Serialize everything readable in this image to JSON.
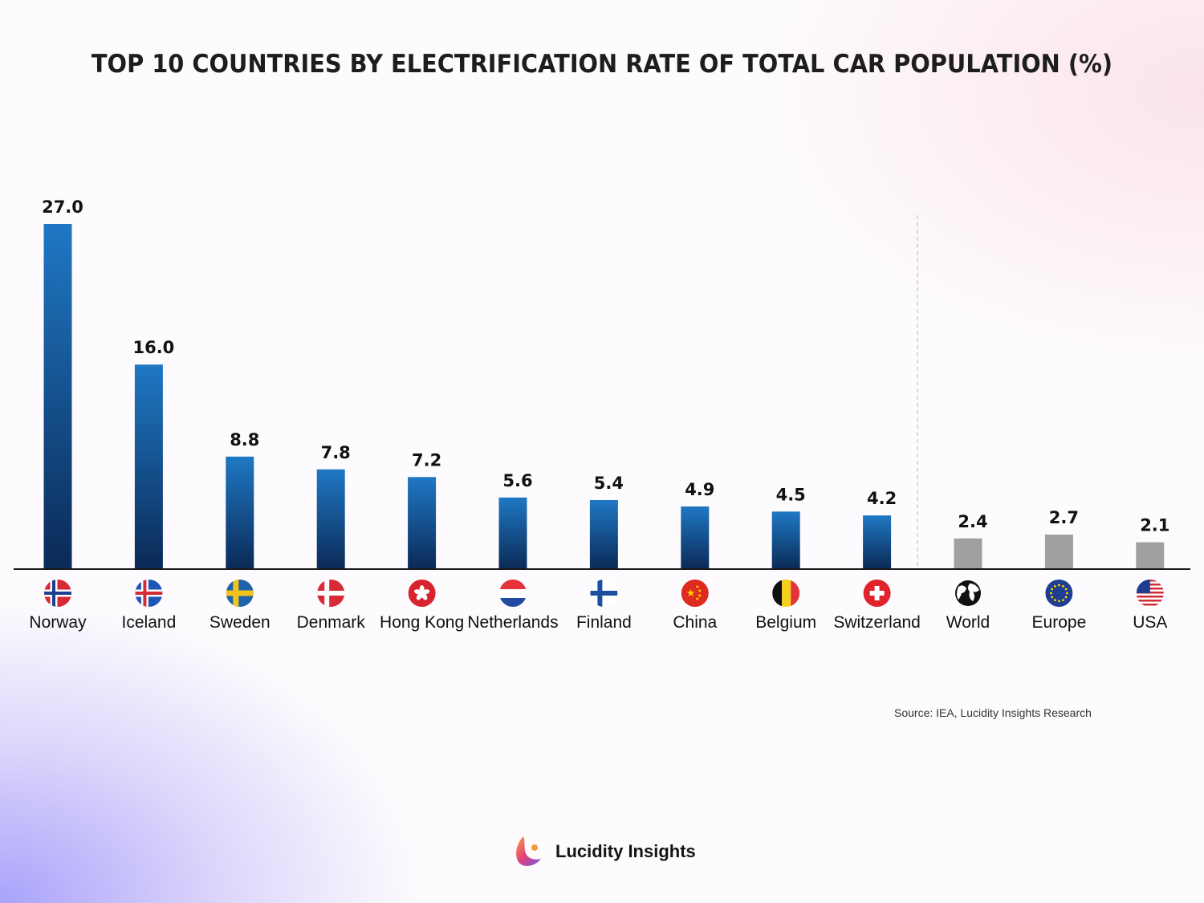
{
  "chart_data": {
    "type": "bar",
    "title": "TOP 10 COUNTRIES BY ELECTRIFICATION RATE OF TOTAL CAR POPULATION (%)",
    "xlabel": "",
    "ylabel": "",
    "ylim": [
      0,
      27
    ],
    "grid": false,
    "categories": [
      "Norway",
      "Iceland",
      "Sweden",
      "Denmark",
      "Hong Kong",
      "Netherlands",
      "Finland",
      "China",
      "Belgium",
      "Switzerland",
      "World",
      "Europe",
      "USA"
    ],
    "values": [
      27.0,
      16.0,
      8.8,
      7.8,
      7.2,
      5.6,
      5.4,
      4.9,
      4.5,
      4.2,
      2.4,
      2.7,
      2.1
    ],
    "value_labels": [
      "27.0",
      "16.0",
      "8.8",
      "7.8",
      "7.2",
      "5.6",
      "5.4",
      "4.9",
      "4.5",
      "4.2",
      "2.4",
      "2.7",
      "2.1"
    ],
    "groups": [
      "country",
      "country",
      "country",
      "country",
      "country",
      "country",
      "country",
      "country",
      "country",
      "country",
      "benchmark",
      "benchmark",
      "benchmark"
    ],
    "flag_icons": [
      "norway-flag-icon",
      "iceland-flag-icon",
      "sweden-flag-icon",
      "denmark-flag-icon",
      "hong-kong-flag-icon",
      "netherlands-flag-icon",
      "finland-flag-icon",
      "china-flag-icon",
      "belgium-flag-icon",
      "switzerland-flag-icon",
      "globe-icon",
      "eu-flag-icon",
      "usa-flag-icon"
    ],
    "colors": {
      "country_top": "#1f78c4",
      "country_bottom": "#0b2a57",
      "benchmark": "#a0a0a0"
    }
  },
  "source": "Source: IEA, Lucidity Insights Research",
  "logo": {
    "text": "Lucidity Insights"
  }
}
